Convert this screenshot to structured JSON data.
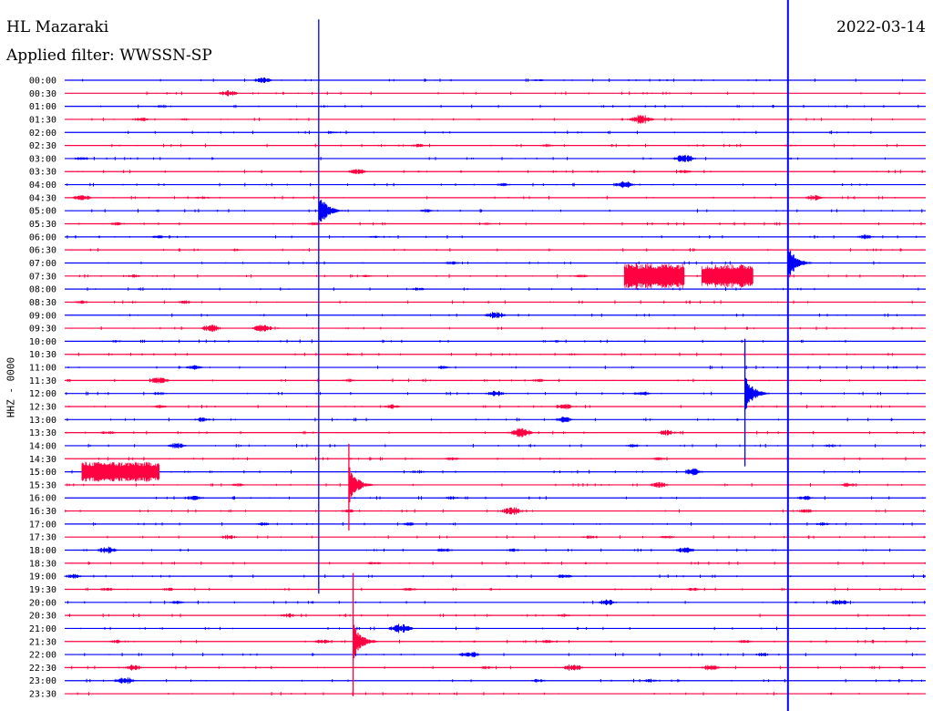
{
  "header": {
    "station": "HL Mazaraki",
    "date": "2022-03-14",
    "filter": "Applied filter: WWSSN-SP",
    "channel": "HHZ - 0000"
  },
  "colors": {
    "even_trace": "#0000ff",
    "odd_trace": "#ff0040",
    "text": "#000000"
  },
  "chart_data": {
    "type": "line",
    "title": "",
    "xlabel": "",
    "ylabel": "HHZ - 0000",
    "rows": [
      {
        "label": "00:00",
        "events": [
          [
            0.23,
            2.5
          ],
          [
            0.55,
            1.0
          ]
        ]
      },
      {
        "label": "00:30",
        "events": [
          [
            0.19,
            2.5
          ]
        ]
      },
      {
        "label": "01:00",
        "events": [
          [
            0.11,
            1.0
          ],
          [
            0.3,
            1.0
          ]
        ]
      },
      {
        "label": "01:30",
        "events": [
          [
            0.09,
            1.5
          ],
          [
            0.14,
            1.0
          ],
          [
            0.67,
            4.0
          ]
        ]
      },
      {
        "label": "02:00",
        "events": [
          [
            0.31,
            1.0
          ]
        ]
      },
      {
        "label": "02:30",
        "events": [
          [
            0.41,
            1.5
          ],
          [
            0.56,
            1.5
          ],
          [
            0.84,
            1.0
          ]
        ]
      },
      {
        "label": "03:00",
        "events": [
          [
            0.02,
            1.5
          ],
          [
            0.72,
            3.5
          ]
        ]
      },
      {
        "label": "03:30",
        "events": [
          [
            0.34,
            2.5
          ],
          [
            0.72,
            1.5
          ]
        ]
      },
      {
        "label": "04:00",
        "events": [
          [
            0.51,
            1.5
          ],
          [
            0.65,
            3.0
          ]
        ]
      },
      {
        "label": "04:30",
        "events": [
          [
            0.02,
            2.5
          ],
          [
            0.16,
            1.5
          ],
          [
            0.87,
            2.5
          ]
        ]
      },
      {
        "label": "05:00",
        "events": [
          [
            0.42,
            1.5
          ]
        ]
      },
      {
        "label": "05:30",
        "events": [
          [
            0.06,
            1.5
          ],
          [
            0.29,
            1.5
          ],
          [
            0.49,
            1.0
          ]
        ]
      },
      {
        "label": "06:00",
        "events": [
          [
            0.11,
            1.5
          ],
          [
            0.36,
            1.0
          ],
          [
            0.93,
            2.0
          ]
        ]
      },
      {
        "label": "06:30",
        "events": [
          [
            0.2,
            1.0
          ]
        ]
      },
      {
        "label": "07:00",
        "events": [
          [
            0.45,
            1.5
          ]
        ]
      },
      {
        "label": "07:30",
        "events": [
          [
            0.08,
            1.5
          ],
          [
            0.35,
            1.0
          ],
          [
            0.6,
            1.5
          ]
        ]
      },
      {
        "label": "08:00",
        "events": [
          [
            0.41,
            1.5
          ]
        ]
      },
      {
        "label": "08:30",
        "events": [
          [
            0.02,
            1.5
          ],
          [
            0.14,
            1.5
          ]
        ]
      },
      {
        "label": "09:00",
        "events": [
          [
            0.5,
            3.0
          ]
        ]
      },
      {
        "label": "09:30",
        "events": [
          [
            0.17,
            3.0
          ],
          [
            0.23,
            3.0
          ]
        ]
      },
      {
        "label": "10:00",
        "events": [
          [
            0.06,
            1.0
          ],
          [
            0.57,
            1.0
          ]
        ]
      },
      {
        "label": "10:30",
        "events": [
          [
            0.33,
            1.0
          ],
          [
            0.59,
            1.0
          ]
        ]
      },
      {
        "label": "11:00",
        "events": [
          [
            0.15,
            2.0
          ],
          [
            0.44,
            1.5
          ]
        ]
      },
      {
        "label": "11:30",
        "events": [
          [
            0.11,
            3.0
          ],
          [
            0.33,
            1.5
          ],
          [
            0.55,
            1.5
          ]
        ]
      },
      {
        "label": "12:00",
        "events": [
          [
            0.11,
            1.5
          ],
          [
            0.5,
            2.5
          ],
          [
            0.67,
            2.0
          ]
        ]
      },
      {
        "label": "12:30",
        "events": [
          [
            0.11,
            1.5
          ],
          [
            0.38,
            2.0
          ],
          [
            0.58,
            2.5
          ]
        ]
      },
      {
        "label": "13:00",
        "events": [
          [
            0.16,
            2.0
          ],
          [
            0.58,
            2.5
          ]
        ]
      },
      {
        "label": "13:30",
        "events": [
          [
            0.05,
            1.5
          ],
          [
            0.53,
            4.0
          ],
          [
            0.7,
            2.5
          ]
        ]
      },
      {
        "label": "14:00",
        "events": [
          [
            0.13,
            2.5
          ],
          [
            0.66,
            1.5
          ],
          [
            0.89,
            1.5
          ]
        ]
      },
      {
        "label": "14:30",
        "events": [
          [
            0.45,
            1.5
          ],
          [
            0.69,
            1.5
          ]
        ]
      },
      {
        "label": "15:00",
        "events": [
          [
            0.41,
            1.5
          ],
          [
            0.73,
            3.0
          ]
        ]
      },
      {
        "label": "15:30",
        "events": [
          [
            0.2,
            1.5
          ],
          [
            0.69,
            2.5
          ],
          [
            0.91,
            2.0
          ]
        ]
      },
      {
        "label": "16:00",
        "events": [
          [
            0.15,
            2.0
          ],
          [
            0.45,
            1.5
          ],
          [
            0.86,
            2.0
          ]
        ]
      },
      {
        "label": "16:30",
        "events": [
          [
            0.33,
            1.5
          ],
          [
            0.52,
            3.5
          ],
          [
            0.86,
            2.0
          ]
        ]
      },
      {
        "label": "17:00",
        "events": [
          [
            0.23,
            1.5
          ],
          [
            0.4,
            1.5
          ],
          [
            0.88,
            1.5
          ]
        ]
      },
      {
        "label": "17:30",
        "events": [
          [
            0.19,
            2.0
          ],
          [
            0.61,
            1.5
          ],
          [
            0.7,
            1.5
          ]
        ]
      },
      {
        "label": "18:00",
        "events": [
          [
            0.05,
            3.0
          ],
          [
            0.44,
            2.0
          ],
          [
            0.52,
            1.5
          ],
          [
            0.72,
            2.5
          ]
        ]
      },
      {
        "label": "18:30",
        "events": [
          [
            0.36,
            1.5
          ],
          [
            0.56,
            1.0
          ]
        ]
      },
      {
        "label": "19:00",
        "events": [
          [
            0.01,
            2.0
          ],
          [
            0.58,
            2.0
          ]
        ]
      },
      {
        "label": "19:30",
        "events": [
          [
            0.05,
            1.5
          ],
          [
            0.12,
            1.5
          ],
          [
            0.4,
            1.5
          ],
          [
            0.73,
            1.5
          ]
        ]
      },
      {
        "label": "20:00",
        "events": [
          [
            0.13,
            1.5
          ],
          [
            0.63,
            2.5
          ],
          [
            0.9,
            2.5
          ]
        ]
      },
      {
        "label": "20:30",
        "events": [
          [
            0.26,
            2.0
          ],
          [
            0.58,
            1.5
          ]
        ]
      },
      {
        "label": "21:00",
        "events": [
          [
            0.39,
            4.0
          ]
        ]
      },
      {
        "label": "21:30",
        "events": [
          [
            0.06,
            1.5
          ],
          [
            0.3,
            2.0
          ],
          [
            0.56,
            1.5
          ],
          [
            0.79,
            1.5
          ]
        ]
      },
      {
        "label": "22:00",
        "events": [
          [
            0.47,
            3.0
          ],
          [
            0.81,
            1.5
          ]
        ]
      },
      {
        "label": "22:30",
        "events": [
          [
            0.08,
            2.5
          ],
          [
            0.49,
            1.5
          ],
          [
            0.59,
            3.0
          ],
          [
            0.75,
            2.5
          ]
        ]
      },
      {
        "label": "23:00",
        "events": [
          [
            0.07,
            3.0
          ],
          [
            0.55,
            1.5
          ],
          [
            0.68,
            1.5
          ]
        ]
      },
      {
        "label": "23:30",
        "events": []
      }
    ],
    "big_events": [
      {
        "row": 10,
        "pos": 0.295,
        "color": "blue",
        "up": 210,
        "down": 420
      },
      {
        "row": 24,
        "pos": 0.79,
        "color": "blue",
        "up": 60,
        "down": 80
      },
      {
        "row": 31,
        "pos": 0.33,
        "color": "red",
        "up": 45,
        "down": 50
      },
      {
        "row": 43,
        "pos": 0.335,
        "color": "red",
        "up": 75,
        "down": 60
      },
      {
        "row": 14,
        "pos": 0.84,
        "color": "blue",
        "up": 120,
        "down": 130
      }
    ],
    "noise_bursts": [
      {
        "row": 30,
        "start": 0.02,
        "end": 0.11,
        "color": "red",
        "amp": 11
      },
      {
        "row": 15,
        "start": 0.65,
        "end": 0.72,
        "color": "red",
        "amp": 14
      },
      {
        "row": 15,
        "start": 0.74,
        "end": 0.8,
        "color": "red",
        "amp": 13
      }
    ],
    "full_height_line": {
      "pos": 0.84,
      "color": "blue"
    }
  }
}
